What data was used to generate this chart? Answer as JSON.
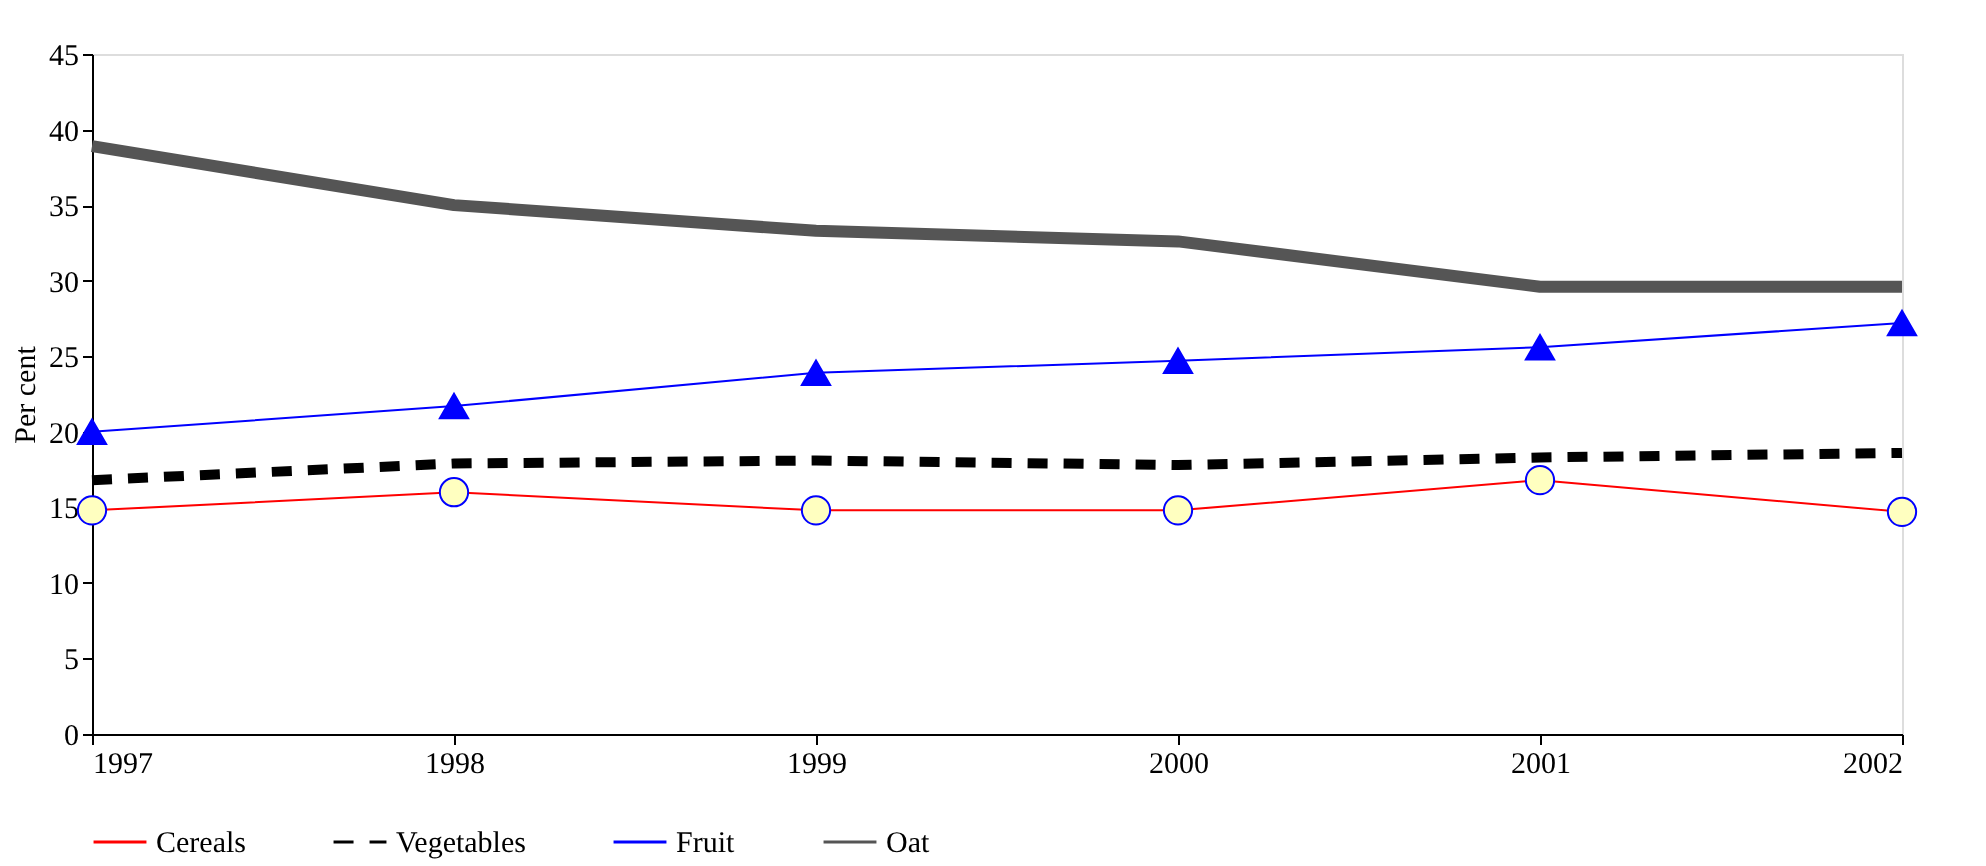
{
  "chart_data": {
    "type": "line",
    "ylabel": "Per cent",
    "categories": [
      "1997",
      "1998",
      "1999",
      "2000",
      "2001",
      "2002"
    ],
    "ylim": [
      0,
      45
    ],
    "yticks": [
      0,
      5,
      10,
      15,
      20,
      25,
      30,
      35,
      40,
      45
    ],
    "grid": false,
    "legend": "bottom",
    "series": [
      {
        "name": "Cereals",
        "color": "#ff0000",
        "marker": "circle",
        "line_style": "solid",
        "values": [
          14.8,
          16.0,
          14.8,
          14.8,
          16.8,
          14.7
        ]
      },
      {
        "name": "Vegetables",
        "color": "#000000",
        "marker": "none",
        "line_style": "dashed",
        "values": [
          16.8,
          17.9,
          18.1,
          17.8,
          18.3,
          18.6
        ]
      },
      {
        "name": "Fruit",
        "color": "#0000ff",
        "marker": "triangle",
        "line_style": "solid",
        "values": [
          20.0,
          21.7,
          23.9,
          24.7,
          25.6,
          27.2
        ]
      },
      {
        "name": "Oat",
        "color": "#555555",
        "marker": "none",
        "line_style": "solid",
        "values": [
          38.9,
          35.0,
          33.3,
          32.6,
          29.6,
          29.6
        ]
      }
    ]
  }
}
